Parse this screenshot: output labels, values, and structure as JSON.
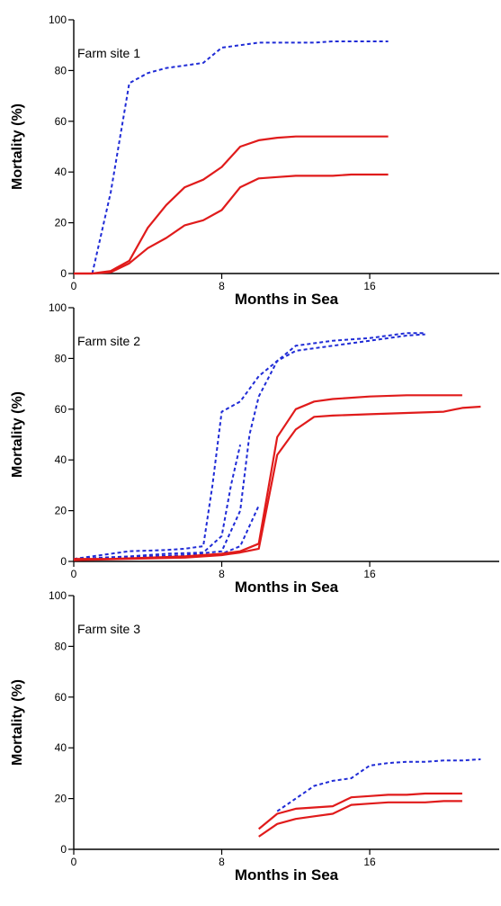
{
  "chart_data": [
    {
      "type": "line",
      "title": "Farm site 1",
      "xlabel": "Months in Sea",
      "ylabel": "Mortality (%)",
      "xlim": [
        0,
        23
      ],
      "ylim": [
        0,
        100
      ],
      "xticks": [
        0,
        8,
        16
      ],
      "yticks": [
        0,
        20,
        40,
        60,
        80,
        100
      ],
      "grid": false,
      "series": [
        {
          "style": "dashed",
          "color": "#1f2bd6",
          "points": [
            [
              1,
              0
            ],
            [
              2,
              32
            ],
            [
              3,
              75
            ],
            [
              4,
              79
            ],
            [
              5,
              81
            ],
            [
              6,
              82
            ],
            [
              7,
              83
            ],
            [
              8,
              89
            ],
            [
              9,
              90
            ],
            [
              10,
              91
            ],
            [
              11,
              91
            ],
            [
              12,
              91
            ],
            [
              13,
              91
            ],
            [
              14,
              91.5
            ],
            [
              15,
              91.5
            ],
            [
              16,
              91.5
            ],
            [
              17,
              91.5
            ]
          ]
        },
        {
          "style": "solid",
          "color": "#e01b1b",
          "points": [
            [
              0,
              0
            ],
            [
              1,
              0
            ],
            [
              2,
              1
            ],
            [
              3,
              5
            ],
            [
              4,
              18
            ],
            [
              5,
              27
            ],
            [
              6,
              34
            ],
            [
              7,
              37
            ],
            [
              8,
              42
            ],
            [
              9,
              50
            ],
            [
              10,
              52.5
            ],
            [
              11,
              53.5
            ],
            [
              12,
              54
            ],
            [
              13,
              54
            ],
            [
              14,
              54
            ],
            [
              15,
              54
            ],
            [
              16,
              54
            ],
            [
              17,
              54
            ]
          ]
        },
        {
          "style": "solid",
          "color": "#e01b1b",
          "points": [
            [
              0,
              0
            ],
            [
              1,
              0
            ],
            [
              2,
              0.5
            ],
            [
              3,
              4
            ],
            [
              4,
              10
            ],
            [
              5,
              14
            ],
            [
              6,
              19
            ],
            [
              7,
              21
            ],
            [
              8,
              25
            ],
            [
              9,
              34
            ],
            [
              10,
              37.5
            ],
            [
              11,
              38
            ],
            [
              12,
              38.5
            ],
            [
              13,
              38.5
            ],
            [
              14,
              38.5
            ],
            [
              15,
              39
            ],
            [
              16,
              39
            ],
            [
              17,
              39
            ]
          ]
        }
      ]
    },
    {
      "type": "line",
      "title": "Farm site 2",
      "xlabel": "Months in Sea",
      "ylabel": "Mortality (%)",
      "xlim": [
        0,
        23
      ],
      "ylim": [
        0,
        100
      ],
      "xticks": [
        0,
        8,
        16
      ],
      "yticks": [
        0,
        20,
        40,
        60,
        80,
        100
      ],
      "grid": false,
      "series": [
        {
          "style": "dashed",
          "color": "#1f2bd6",
          "points": [
            [
              0,
              1
            ],
            [
              2,
              3
            ],
            [
              3,
              4
            ],
            [
              5,
              4.5
            ],
            [
              6,
              5
            ],
            [
              7,
              6
            ],
            [
              7.5,
              30
            ],
            [
              8,
              59
            ],
            [
              9,
              63
            ],
            [
              10,
              73
            ],
            [
              11,
              79
            ],
            [
              12,
              85
            ],
            [
              14,
              87
            ],
            [
              16,
              88
            ],
            [
              18,
              90
            ],
            [
              19,
              90
            ]
          ]
        },
        {
          "style": "dashed",
          "color": "#1f2bd6",
          "points": [
            [
              0,
              1
            ],
            [
              3,
              2
            ],
            [
              5,
              3
            ],
            [
              7,
              3.5
            ],
            [
              8,
              10
            ],
            [
              8.5,
              30
            ],
            [
              9,
              46
            ]
          ]
        },
        {
          "style": "dashed",
          "color": "#1f2bd6",
          "points": [
            [
              0,
              1
            ],
            [
              4,
              2
            ],
            [
              6,
              2.5
            ],
            [
              8,
              4
            ],
            [
              9,
              20
            ],
            [
              9.5,
              50
            ],
            [
              10,
              65
            ],
            [
              11,
              79
            ],
            [
              12,
              83
            ],
            [
              14,
              85
            ],
            [
              16,
              87
            ],
            [
              18,
              89
            ],
            [
              19,
              89.5
            ]
          ]
        },
        {
          "style": "dashed",
          "color": "#1f2bd6",
          "points": [
            [
              0,
              1
            ],
            [
              5,
              1.5
            ],
            [
              7,
              2
            ],
            [
              8,
              3
            ],
            [
              9,
              6
            ],
            [
              10,
              22
            ]
          ]
        },
        {
          "style": "solid",
          "color": "#e01b1b",
          "points": [
            [
              0,
              1
            ],
            [
              2,
              1
            ],
            [
              4,
              1.5
            ],
            [
              6,
              2
            ],
            [
              8,
              3
            ],
            [
              9,
              4
            ],
            [
              10,
              7
            ],
            [
              11,
              49
            ],
            [
              12,
              60
            ],
            [
              13,
              63
            ],
            [
              14,
              64
            ],
            [
              16,
              65
            ],
            [
              18,
              65.5
            ],
            [
              21,
              65.5
            ]
          ]
        },
        {
          "style": "solid",
          "color": "#e01b1b",
          "points": [
            [
              0,
              0.5
            ],
            [
              3,
              1
            ],
            [
              6,
              1.5
            ],
            [
              8,
              2.5
            ],
            [
              9,
              3.5
            ],
            [
              10,
              5
            ],
            [
              11,
              42
            ],
            [
              12,
              52
            ],
            [
              13,
              57
            ],
            [
              14,
              57.5
            ],
            [
              16,
              58
            ],
            [
              18,
              58.5
            ],
            [
              20,
              59
            ],
            [
              21,
              60.5
            ],
            [
              22,
              61
            ]
          ]
        }
      ]
    },
    {
      "type": "line",
      "title": "Farm site 3",
      "xlabel": "Months in Sea",
      "ylabel": "Mortality (%)",
      "xlim": [
        0,
        23
      ],
      "ylim": [
        0,
        100
      ],
      "xticks": [
        0,
        8,
        16
      ],
      "yticks": [
        0,
        20,
        40,
        60,
        80,
        100
      ],
      "grid": false,
      "series": [
        {
          "style": "dashed",
          "color": "#1f2bd6",
          "points": [
            [
              11,
              15
            ],
            [
              12,
              20
            ],
            [
              13,
              25
            ],
            [
              14,
              27
            ],
            [
              15,
              28
            ],
            [
              16,
              33
            ],
            [
              17,
              34
            ],
            [
              18,
              34.5
            ],
            [
              19,
              34.5
            ],
            [
              20,
              35
            ],
            [
              21,
              35
            ],
            [
              22,
              35.5
            ]
          ]
        },
        {
          "style": "solid",
          "color": "#e01b1b",
          "points": [
            [
              10,
              8
            ],
            [
              11,
              14
            ],
            [
              12,
              16
            ],
            [
              13,
              16.5
            ],
            [
              14,
              17
            ],
            [
              15,
              20.5
            ],
            [
              16,
              21
            ],
            [
              17,
              21.5
            ],
            [
              18,
              21.5
            ],
            [
              19,
              22
            ],
            [
              20,
              22
            ],
            [
              21,
              22
            ]
          ]
        },
        {
          "style": "solid",
          "color": "#e01b1b",
          "points": [
            [
              10,
              5
            ],
            [
              11,
              10
            ],
            [
              12,
              12
            ],
            [
              13,
              13
            ],
            [
              14,
              14
            ],
            [
              15,
              17.5
            ],
            [
              16,
              18
            ],
            [
              17,
              18.5
            ],
            [
              18,
              18.5
            ],
            [
              19,
              18.5
            ],
            [
              20,
              19
            ],
            [
              21,
              19
            ]
          ]
        }
      ]
    }
  ]
}
